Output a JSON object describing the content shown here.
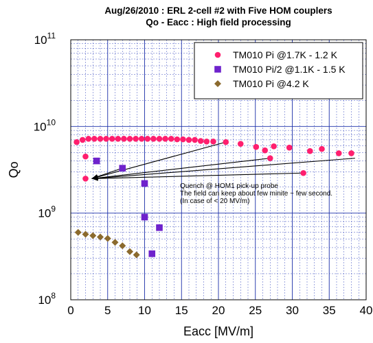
{
  "chart_data": {
    "type": "scatter",
    "title": "Aug/26/2010 : ERL 2-cell #2 with Five HOM couplers",
    "subtitle": "Qo - Eacc : High field processing",
    "xlabel": "Eacc [MV/m]",
    "ylabel": "Qo",
    "xlim": [
      0,
      40
    ],
    "ylim": [
      100000000.0,
      100000000000.0
    ],
    "y_scale": "log",
    "grid": true,
    "legend_position": "top-right",
    "x_ticks": [
      "0",
      "5",
      "10",
      "15",
      "20",
      "25",
      "30",
      "35",
      "40"
    ],
    "y_ticks": [
      {
        "base": "10",
        "exp": "8"
      },
      {
        "base": "10",
        "exp": "9"
      },
      {
        "base": "10",
        "exp": "10"
      },
      {
        "base": "10",
        "exp": "11"
      }
    ],
    "series": [
      {
        "name": "TM010 Pi @1.7K - 1.2 K",
        "color": "#ff1f6e",
        "marker": "circle",
        "points": [
          [
            0.8,
            6600000000.0
          ],
          [
            1.6,
            7000000000.0
          ],
          [
            2.4,
            7200000000.0
          ],
          [
            3.2,
            7200000000.0
          ],
          [
            4.0,
            7200000000.0
          ],
          [
            4.8,
            7200000000.0
          ],
          [
            5.6,
            7200000000.0
          ],
          [
            6.4,
            7200000000.0
          ],
          [
            7.2,
            7200000000.0
          ],
          [
            8.0,
            7200000000.0
          ],
          [
            8.8,
            7200000000.0
          ],
          [
            9.6,
            7200000000.0
          ],
          [
            10.4,
            7200000000.0
          ],
          [
            11.2,
            7200000000.0
          ],
          [
            12.0,
            7200000000.0
          ],
          [
            12.8,
            7200000000.0
          ],
          [
            13.6,
            7200000000.0
          ],
          [
            14.4,
            7100000000.0
          ],
          [
            15.2,
            7100000000.0
          ],
          [
            16.0,
            7000000000.0
          ],
          [
            16.8,
            7000000000.0
          ],
          [
            17.6,
            6800000000.0
          ],
          [
            18.4,
            6700000000.0
          ],
          [
            19.3,
            6700000000.0
          ],
          [
            21.0,
            6600000000.0
          ],
          [
            23.0,
            6300000000.0
          ],
          [
            25.1,
            5800000000.0
          ],
          [
            26.3,
            5300000000.0
          ],
          [
            27.5,
            5900000000.0
          ],
          [
            29.6,
            5700000000.0
          ],
          [
            32.4,
            5200000000.0
          ],
          [
            34.0,
            5500000000.0
          ],
          [
            36.3,
            4900000000.0
          ],
          [
            38.0,
            4900000000.0
          ],
          [
            2.0,
            4500000000.0
          ],
          [
            2.0,
            2500000000.0
          ],
          [
            27.0,
            4300000000.0
          ],
          [
            31.5,
            2900000000.0
          ]
        ]
      },
      {
        "name": "TM010 Pi/2 @1.1K - 1.5 K",
        "color": "#6e22cc",
        "marker": "square",
        "points": [
          [
            3.5,
            4000000000.0
          ],
          [
            7.0,
            3300000000.0
          ],
          [
            10.0,
            2200000000.0
          ],
          [
            10.0,
            900000000.0
          ],
          [
            11.0,
            340000000.0
          ],
          [
            12.0,
            680000000.0
          ]
        ]
      },
      {
        "name": "TM010 Pi @4.2 K",
        "color": "#8b6a2e",
        "marker": "diamond",
        "points": [
          [
            1.0,
            600000000.0
          ],
          [
            2.0,
            570000000.0
          ],
          [
            3.0,
            550000000.0
          ],
          [
            4.0,
            530000000.0
          ],
          [
            5.0,
            510000000.0
          ],
          [
            6.0,
            460000000.0
          ],
          [
            7.0,
            420000000.0
          ],
          [
            8.0,
            360000000.0
          ],
          [
            8.9,
            330000000.0
          ]
        ]
      }
    ],
    "annotation": {
      "lines": [
        "Quench @ HOM1 pick-up probe",
        "The field can keep about few minite ~ few second.",
        "(In case of < 20 MV/m)"
      ],
      "arrow_target": [
        2.0,
        2500000000.0
      ],
      "arrow_sources": [
        [
          21.0,
          6600000000.0
        ],
        [
          27.0,
          4300000000.0
        ],
        [
          7.0,
          3300000000.0
        ],
        [
          31.5,
          2900000000.0
        ],
        [
          38.5,
          4300000000.0
        ]
      ]
    }
  }
}
